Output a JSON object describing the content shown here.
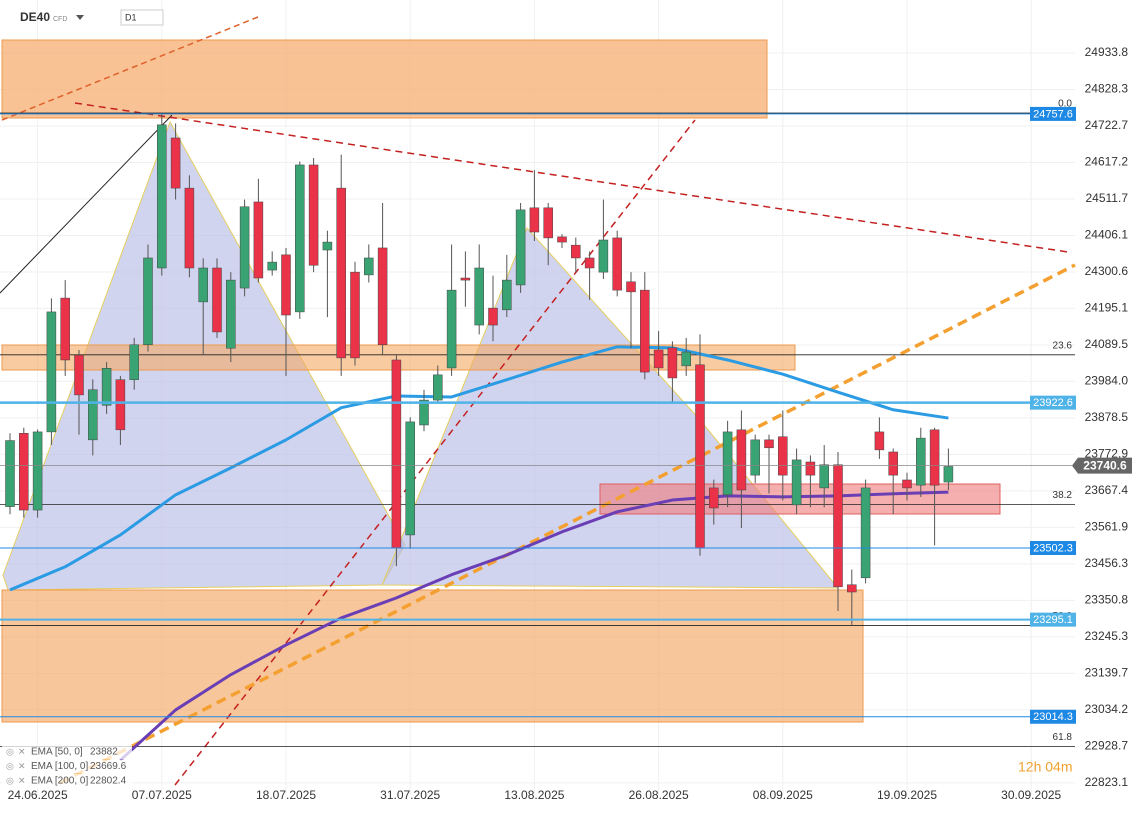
{
  "chart_data": {
    "type": "candlestick",
    "symbol": "DE40",
    "instrument": "CFD",
    "timeframe": "D1",
    "timer": "12h 04m",
    "up_color": "#3aa374",
    "down_color": "#ea3349",
    "categories": [
      null,
      null,
      "24.06.2025",
      null,
      null,
      null,
      null,
      null,
      null,
      null,
      null,
      "07.07.2025",
      null,
      null,
      null,
      null,
      null,
      null,
      null,
      null,
      "18.07.2025",
      null,
      null,
      null,
      null,
      null,
      null,
      null,
      null,
      "31.07.2025",
      null,
      null,
      null,
      null,
      null,
      null,
      null,
      null,
      "13.08.2025",
      null,
      null,
      null,
      null,
      null,
      null,
      null,
      null,
      "26.08.2025",
      null,
      null,
      null,
      null,
      null,
      null,
      null,
      null,
      "08.09.2025",
      null,
      null,
      null,
      null,
      null,
      null,
      null,
      null,
      "19.09.2025",
      null,
      null,
      null,
      null,
      null,
      null,
      null,
      null,
      "30.09.2025"
    ],
    "open": [
      23622,
      23834,
      23612,
      23838,
      24225,
      24060,
      23815,
      23915,
      23989,
      23989,
      24090,
      24312,
      24688,
      24543,
      24214,
      24312,
      24080,
      24254,
      24503,
      24306,
      24350,
      24185,
      24610,
      24364,
      24543,
      24300,
      24292,
      24370,
      24046,
      23540,
      23858,
      23930,
      24023,
      24283,
      24147,
      24196,
      24191,
      24263,
      24486,
      24486,
      24402,
      24378,
      24341,
      24300,
      24399,
      24272,
      24248,
      24075,
      24081,
      24029,
      24032,
      23676,
      23656,
      23844,
      23713,
      23815,
      23824,
      23627,
      23751,
      23676,
      23743,
      23396,
      23416,
      23838,
      23780,
      23699,
      23684,
      23844,
      23693,
      null,
      null,
      null,
      null,
      null,
      null
    ],
    "high": [
      23834,
      23850,
      23845,
      24224,
      24277,
      24075,
      23990,
      24040,
      24000,
      24110,
      24380,
      24760,
      24730,
      24580,
      24340,
      24340,
      24300,
      24510,
      24570,
      24360,
      24370,
      24620,
      24630,
      24420,
      24640,
      24330,
      24380,
      24500,
      24060,
      23880,
      23960,
      24030,
      24380,
      24360,
      24380,
      24290,
      24350,
      24500,
      24595,
      24500,
      24410,
      24400,
      24360,
      24510,
      24420,
      24300,
      24300,
      24130,
      24100,
      24110,
      24120,
      23700,
      23870,
      23900,
      23830,
      23830,
      23900,
      23790,
      23770,
      23800,
      23780,
      23440,
      23700,
      23880,
      23790,
      23720,
      23850,
      23850,
      23790,
      null,
      null,
      null,
      null,
      null,
      null
    ],
    "low": [
      23600,
      23590,
      23590,
      23800,
      24000,
      23830,
      23770,
      23890,
      23800,
      23960,
      24070,
      24290,
      24510,
      24285,
      24060,
      24110,
      24040,
      24230,
      24270,
      24290,
      24000,
      24165,
      24300,
      24170,
      24000,
      24030,
      24270,
      24060,
      23450,
      23500,
      23840,
      23920,
      24000,
      24200,
      24120,
      24100,
      24170,
      24240,
      24390,
      24320,
      24370,
      24300,
      24220,
      24280,
      24230,
      24080,
      23990,
      24000,
      23920,
      24000,
      23480,
      23570,
      23620,
      23560,
      23690,
      23660,
      23640,
      23600,
      23620,
      23620,
      23320,
      23280,
      23400,
      23760,
      23600,
      23640,
      23650,
      23510,
      23670,
      null,
      null,
      null,
      null,
      null,
      null
    ],
    "close": [
      23813,
      23612,
      23838,
      24185,
      24046,
      23945,
      23960,
      24022,
      23844,
      24090,
      24341,
      24726,
      24543,
      24312,
      24312,
      24127,
      24277,
      24489,
      24283,
      24329,
      24176,
      24610,
      24320,
      24387,
      24052,
      24052,
      24341,
      24090,
      23503,
      23867,
      23930,
      24003,
      24248,
      24277,
      24312,
      24147,
      24277,
      24480,
      24416,
      24399,
      24387,
      24341,
      24312,
      24393,
      24248,
      24243,
      24011,
      24023,
      23994,
      24069,
      23503,
      23618,
      23838,
      23670,
      23815,
      23792,
      23713,
      23757,
      23713,
      23743,
      23390,
      23375,
      23676,
      23786,
      23713,
      23676,
      23820,
      23684,
      23738,
      null,
      null,
      null,
      null,
      null,
      null
    ],
    "ylim": [
      22788,
      25087
    ],
    "yticks": [
      24933.8,
      24828.3,
      24722.7,
      24617.2,
      24511.7,
      24406.1,
      24300.6,
      24195.1,
      24089.5,
      {
        "value": 23984,
        "label": "23984.0"
      },
      23878.5,
      23772.9,
      23667.4,
      23561.9,
      23456.3,
      23350.8,
      23245.3,
      23139.7,
      23034.2,
      22928.7,
      22823.1
    ],
    "overlays": [
      {
        "name": "EMA [50, 0]",
        "legend_value": 23882,
        "color": "#2b9be3",
        "x": [
          0,
          4,
          8,
          12,
          16,
          20,
          24,
          28,
          32,
          36,
          40,
          44,
          48,
          52,
          56,
          60,
          64,
          68
        ],
        "values": [
          23381,
          23448,
          23540,
          23656,
          23734,
          23815,
          23908,
          23942,
          23939,
          23989,
          24040,
          24084,
          24081,
          24046,
          24005,
          23953,
          23902,
          23878
        ]
      },
      {
        "name": "EMA [100, 0]",
        "legend_value": 23669.6,
        "color": "#6a3fb5",
        "x": [
          8,
          12,
          16,
          20,
          24,
          28,
          32,
          36,
          40,
          44,
          48,
          52,
          56,
          60,
          64,
          68
        ],
        "values": [
          22889,
          23034,
          23136,
          23222,
          23300,
          23358,
          23425,
          23482,
          23549,
          23607,
          23641,
          23653,
          23650,
          23653,
          23659,
          23664
        ]
      },
      {
        "name": "EMA [200, 0]",
        "legend_value": 22802.4,
        "color": "#9e9e9e"
      }
    ],
    "levels": [
      {
        "value": 24757.6,
        "color": "#1e88e5",
        "width": 1
      },
      {
        "value": 23922.6,
        "color": "#4fb3e8",
        "width": 2.5
      },
      {
        "value": 23502.3,
        "color": "#1e88e5",
        "width": 1
      },
      {
        "value": 23295.1,
        "color": "#4fb3e8",
        "width": 2
      },
      {
        "value": 23014.3,
        "color": "#1e88e5",
        "width": 1
      }
    ],
    "current_price": 23740.6,
    "fib_levels": [
      {
        "label": "0.0",
        "price": 24760
      },
      {
        "label": "23.6",
        "price": 24061
      },
      {
        "label": "38.2",
        "price": 23628
      },
      {
        "label": "50.0",
        "price": 23278
      },
      {
        "label": "61.8",
        "price": 22928
      }
    ]
  }
}
